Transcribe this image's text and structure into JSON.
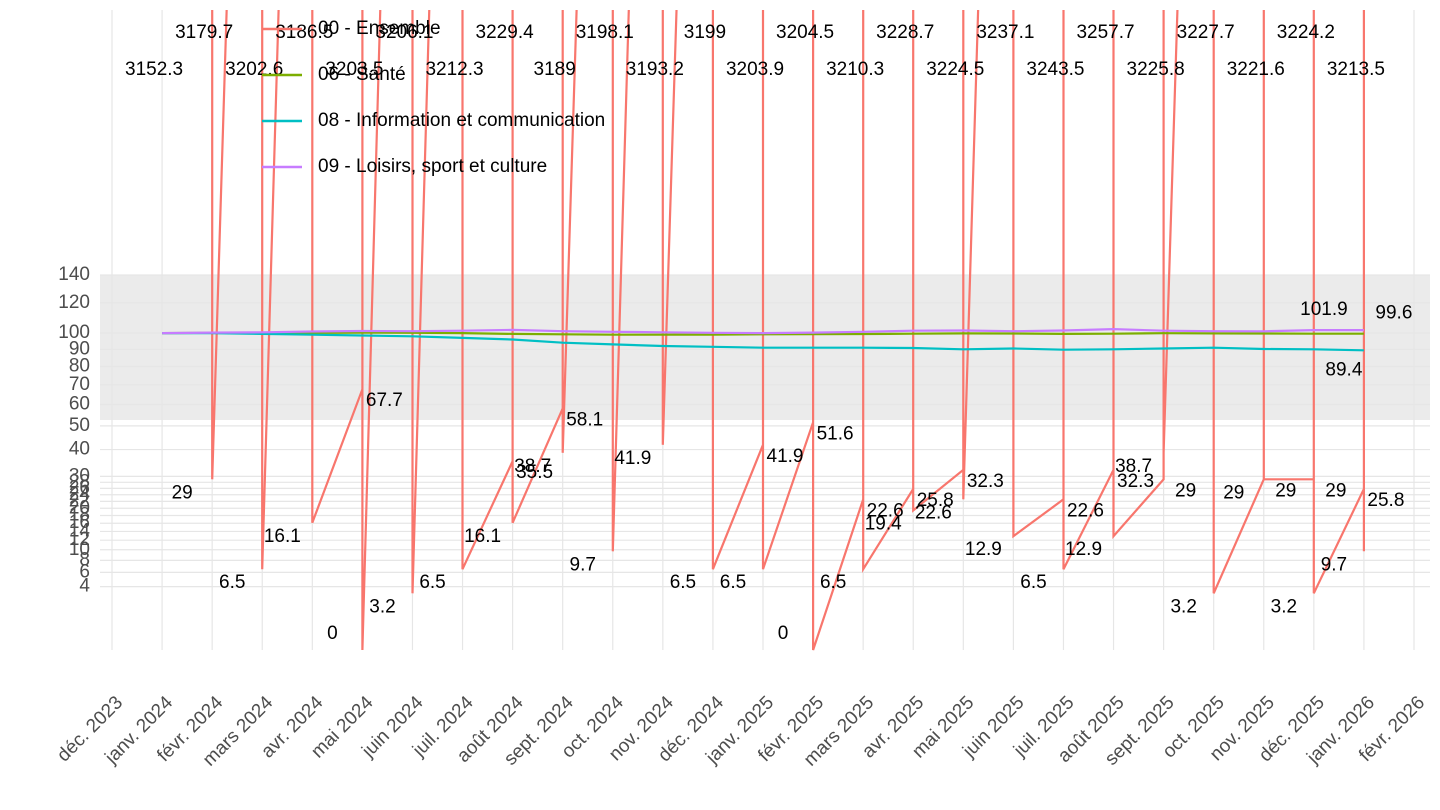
{
  "chart_data": {
    "type": "line",
    "categories": [
      "déc. 2023",
      "janv. 2024",
      "févr. 2024",
      "mars 2024",
      "avr. 2024",
      "mai 2024",
      "juin 2024",
      "juil. 2024",
      "août 2024",
      "sept. 2024",
      "oct. 2024",
      "nov. 2024",
      "déc. 2024",
      "janv. 2025",
      "févr. 2025",
      "mars 2025",
      "avr. 2025",
      "mai 2025",
      "juin 2025",
      "juil. 2025",
      "août 2025",
      "sept. 2025",
      "oct. 2025",
      "nov. 2025",
      "déc. 2025",
      "janv. 2026",
      "févr. 2026"
    ],
    "scale": "sqrt",
    "ylim": [
      0,
      140
    ],
    "yticks": [
      4,
      6,
      8,
      10,
      12,
      14,
      16,
      18,
      20,
      22,
      24,
      26,
      28,
      30,
      40,
      50,
      60,
      70,
      80,
      90,
      100,
      120,
      140
    ],
    "grid": true,
    "legend": "top-left",
    "series": [
      {
        "name": "00 - Ensemble",
        "color": "#F8766D",
        "values": [
          null,
          3152.3,
          3179.7,
          3202.6,
          3186.5,
          3203.5,
          3206.1,
          3212.3,
          3229.4,
          3189,
          3198.1,
          3193.2,
          3199,
          3203.9,
          3204.5,
          3210.3,
          3228.7,
          3224.5,
          3237.1,
          3243.5,
          3257.7,
          3225.8,
          3227.7,
          3221.6,
          3224.2,
          3213.5,
          null
        ],
        "low": [
          null,
          null,
          29,
          6.5,
          16.1,
          0,
          3.2,
          6.5,
          16.1,
          38.7,
          9.7,
          41.9,
          6.5,
          6.5,
          0,
          6.5,
          19.4,
          22.6,
          12.9,
          6.5,
          12.9,
          38.7,
          3.2,
          29,
          3.2,
          9.7,
          null
        ],
        "rise": [
          null,
          null,
          null,
          null,
          null,
          67.7,
          null,
          null,
          35.5,
          58.1,
          null,
          null,
          null,
          41.9,
          51.6,
          22.6,
          25.8,
          32.3,
          null,
          22.6,
          32.3,
          29,
          null,
          29,
          29,
          25.8,
          null
        ]
      },
      {
        "name": "06 - Santé",
        "color": "#7CAE00",
        "values": [
          null,
          100,
          100.2,
          100,
          100.1,
          100.3,
          100.2,
          100,
          99.5,
          99.2,
          99,
          99,
          99,
          99.2,
          99.3,
          99.4,
          99.6,
          99.8,
          99.7,
          99.5,
          99.6,
          99.9,
          99.8,
          99.7,
          99.6,
          99.6,
          null
        ]
      },
      {
        "name": "08 - Information et communication",
        "color": "#00BFC4",
        "values": [
          null,
          100,
          100,
          99.5,
          99,
          98.5,
          98,
          97,
          96,
          94,
          93,
          92,
          91.5,
          91,
          91,
          91,
          90.8,
          90,
          90.5,
          89.8,
          90,
          90.5,
          91,
          90.2,
          90,
          89.4,
          null
        ]
      },
      {
        "name": "09 - Loisirs, sport et culture",
        "color": "#C77CFF",
        "values": [
          null,
          100,
          100.3,
          100.5,
          101,
          101.3,
          101.2,
          101.5,
          102,
          101.2,
          100.8,
          100.5,
          100.2,
          100,
          100.3,
          100.8,
          101.5,
          101.6,
          101.2,
          101.6,
          102.5,
          101.5,
          101.2,
          101.1,
          101.9,
          101.9,
          null
        ]
      }
    ]
  }
}
